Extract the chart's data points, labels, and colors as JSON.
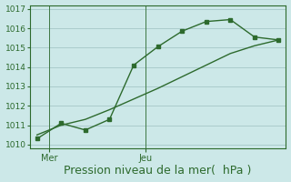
{
  "line1_x": [
    0,
    1,
    2,
    3,
    4,
    5,
    6,
    7,
    8,
    9,
    10
  ],
  "line1_y": [
    1010.3,
    1011.1,
    1010.75,
    1011.3,
    1014.1,
    1015.05,
    1015.85,
    1016.35,
    1016.45,
    1015.55,
    1015.4
  ],
  "line2_x": [
    0,
    1,
    2,
    3,
    4,
    5,
    6,
    7,
    8,
    9,
    10
  ],
  "line2_y": [
    1010.5,
    1011.0,
    1011.3,
    1011.8,
    1012.35,
    1012.9,
    1013.5,
    1014.1,
    1014.7,
    1015.1,
    1015.4
  ],
  "color": "#2d6a2d",
  "bg_color": "#cce8e8",
  "grid_color": "#aacccc",
  "xlabel": "Pression niveau de la mer(  hPa )",
  "ylim": [
    1009.8,
    1017.2
  ],
  "yticks": [
    1010,
    1011,
    1012,
    1013,
    1014,
    1015,
    1016,
    1017
  ],
  "xlim": [
    -0.3,
    10.3
  ],
  "xtick_positions": [
    0.5,
    4.5
  ],
  "xtick_labels": [
    "Mer",
    "Jeu"
  ],
  "vline_positions": [
    0.5,
    4.5
  ],
  "xlabel_fontsize": 9,
  "marker_size": 3.5
}
